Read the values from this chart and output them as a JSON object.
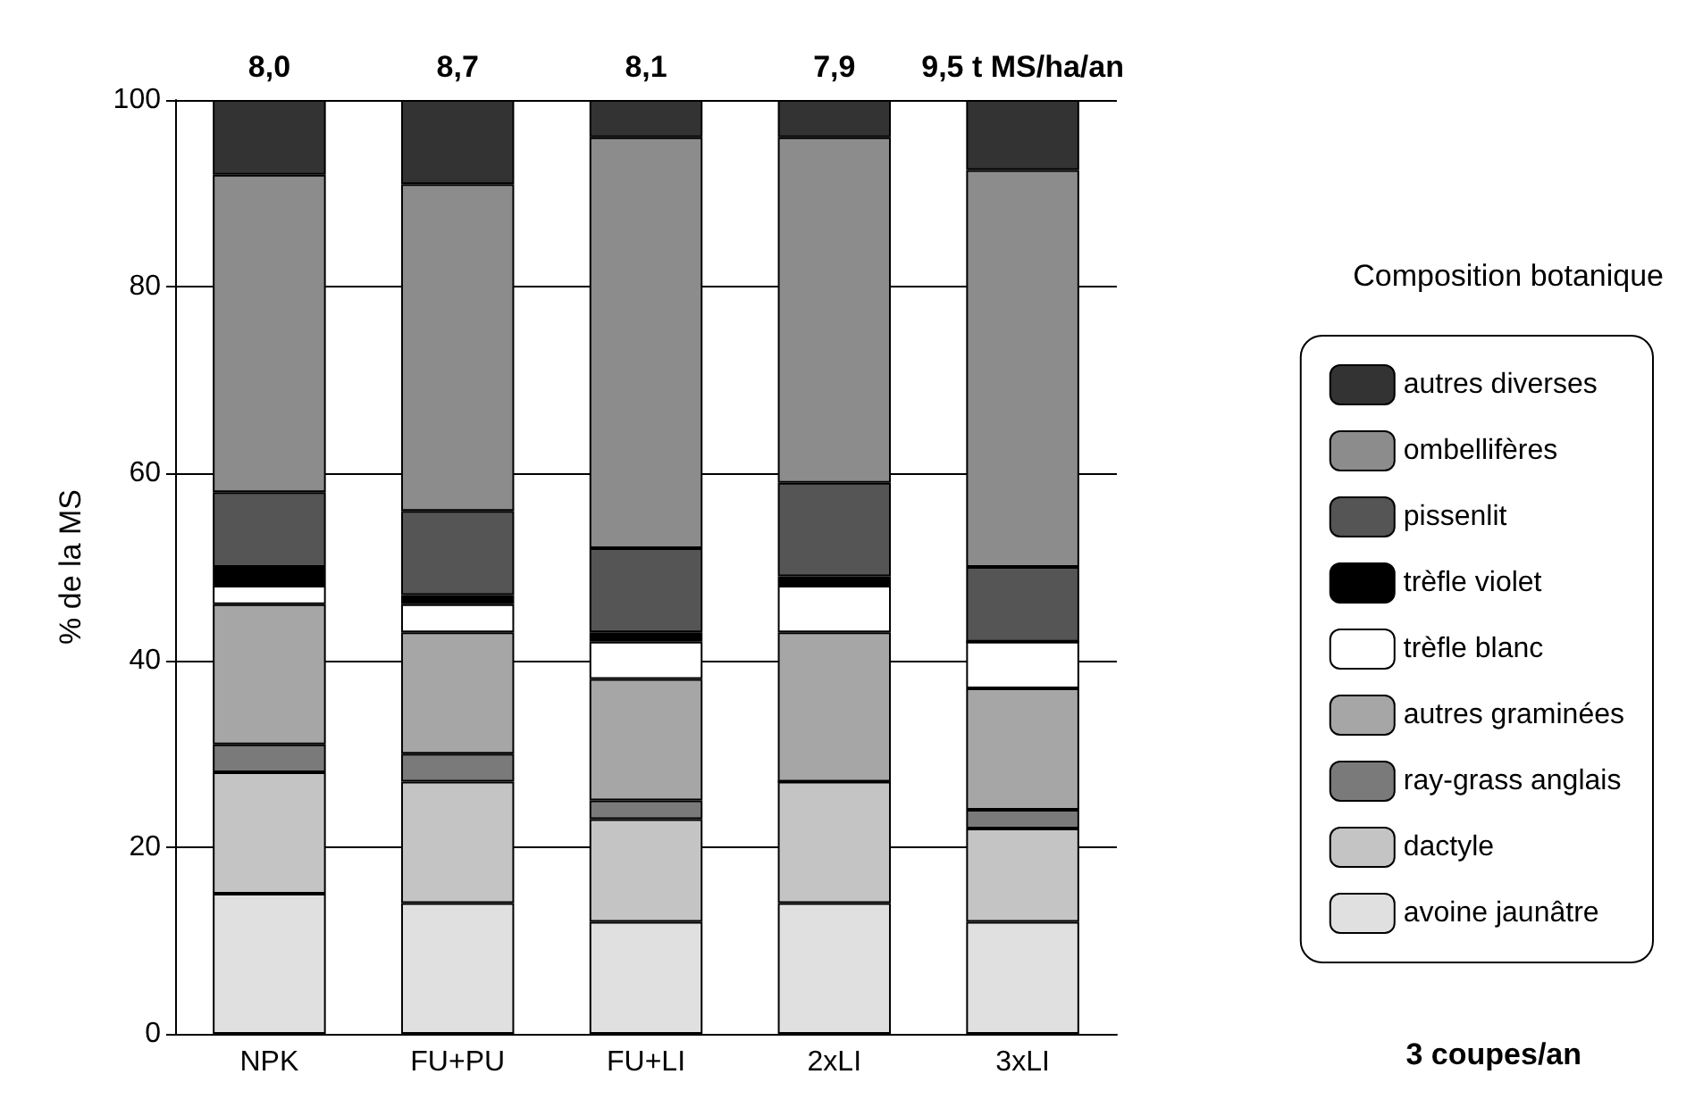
{
  "chart_data": {
    "type": "bar",
    "stacked": true,
    "categories": [
      "NPK",
      "FU+PU",
      "FU+LI",
      "2xLI",
      "3xLI"
    ],
    "ylabel": "% de la MS",
    "ylim": [
      0,
      100
    ],
    "yticks": [
      0,
      20,
      40,
      60,
      80,
      100
    ],
    "grid": "y",
    "legend": "right",
    "legend_title": "Composition botanique",
    "annotations": [
      {
        "text": "8,0",
        "x": "NPK",
        "y": 100
      },
      {
        "text": "8,7",
        "x": "FU+PU",
        "y": 100
      },
      {
        "text": "8,1",
        "x": "FU+LI",
        "y": 100
      },
      {
        "text": "7,9",
        "x": "2xLI",
        "y": 100
      },
      {
        "text": "9,5 t MS/ha/an",
        "x": "3xLI",
        "y": 100
      },
      "3 coupes/an"
    ],
    "series": [
      {
        "name": "avoine jaunâtre",
        "color": "#e0e0e0",
        "values": [
          15,
          14,
          12,
          14,
          12
        ]
      },
      {
        "name": "dactyle",
        "color": "#c4c4c4",
        "values": [
          13,
          13,
          11,
          13,
          10
        ]
      },
      {
        "name": "ray-grass anglais",
        "color": "#7a7a7a",
        "values": [
          3,
          3,
          2,
          0,
          2
        ]
      },
      {
        "name": "autres graminées",
        "color": "#a6a6a6",
        "values": [
          15,
          13,
          13,
          16,
          13
        ]
      },
      {
        "name": "trèfle blanc",
        "color": "#ffffff",
        "values": [
          2,
          3,
          4,
          5,
          5
        ]
      },
      {
        "name": "trèfle violet",
        "color": "#000000",
        "values": [
          2,
          1,
          1,
          1,
          0
        ]
      },
      {
        "name": "pissenlit",
        "color": "#555555",
        "values": [
          8,
          9,
          9,
          10,
          8
        ]
      },
      {
        "name": "ombellifères",
        "color": "#8c8c8c",
        "values": [
          34,
          35,
          44,
          37,
          42.5
        ]
      },
      {
        "name": "autres diverses",
        "color": "#333333",
        "values": [
          8,
          9,
          4,
          4,
          7.5
        ]
      }
    ]
  }
}
